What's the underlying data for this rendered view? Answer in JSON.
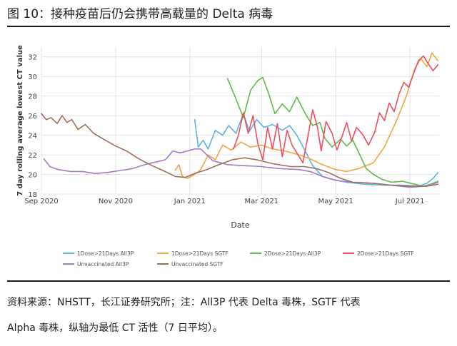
{
  "figure": {
    "title": "图 10：接种疫苗后仍会携带高载量的 Delta 病毒"
  },
  "source": {
    "line1": "资料来源：NHSTT，长江证券研究所；注：All3P 代表 Delta 毒株，SGTF 代表",
    "line2": "Alpha 毒株，纵轴为最低 CT 活性（7 日平均）。"
  },
  "chart_data": {
    "type": "line",
    "xlabel": "Date",
    "ylabel": "7 day rolling average lowest CT value",
    "xlim": [
      "2020-09-01",
      "2021-07-25"
    ],
    "ylim": [
      18,
      33
    ],
    "grid": true,
    "legend_position": "bottom",
    "x_ticks": [
      "Sep 2020",
      "Nov 2020",
      "Jan 2021",
      "Mar 2021",
      "May 2021",
      "Jul 2021"
    ],
    "y_ticks": [
      18,
      20,
      22,
      24,
      26,
      28,
      30,
      32
    ],
    "series": [
      {
        "name": "1Dose>21Days All3P",
        "color": "#5ab4e5",
        "points": [
          [
            "2021-01-05",
            25.6
          ],
          [
            "2021-01-08",
            22.8
          ],
          [
            "2021-01-12",
            23.5
          ],
          [
            "2021-01-16",
            22.6
          ],
          [
            "2021-01-22",
            24.5
          ],
          [
            "2021-01-28",
            24.0
          ],
          [
            "2021-02-02",
            25.0
          ],
          [
            "2021-02-08",
            24.2
          ],
          [
            "2021-02-14",
            26.2
          ],
          [
            "2021-02-19",
            24.4
          ],
          [
            "2021-02-25",
            25.6
          ],
          [
            "2021-03-03",
            24.8
          ],
          [
            "2021-03-10",
            25.1
          ],
          [
            "2021-03-18",
            24.5
          ],
          [
            "2021-03-24",
            25.0
          ],
          [
            "2021-03-30",
            24.0
          ],
          [
            "2021-04-05",
            22.6
          ],
          [
            "2021-04-12",
            20.9
          ],
          [
            "2021-04-20",
            19.8
          ],
          [
            "2021-04-28",
            19.5
          ],
          [
            "2021-05-10",
            19.2
          ],
          [
            "2021-05-25",
            19.0
          ],
          [
            "2021-06-10",
            18.9
          ],
          [
            "2021-06-25",
            18.9
          ],
          [
            "2021-07-08",
            18.8
          ],
          [
            "2021-07-15",
            19.1
          ],
          [
            "2021-07-20",
            19.6
          ],
          [
            "2021-07-24",
            20.2
          ]
        ]
      },
      {
        "name": "1Dose>21Days SGTF",
        "color": "#f5a442",
        "points": [
          [
            "2020-12-20",
            20.4
          ],
          [
            "2020-12-23",
            21.0
          ],
          [
            "2020-12-26",
            19.8
          ],
          [
            "2020-12-30",
            19.6
          ],
          [
            "2021-01-05",
            20.0
          ],
          [
            "2021-01-10",
            20.5
          ],
          [
            "2021-01-16",
            22.0
          ],
          [
            "2021-01-22",
            21.5
          ],
          [
            "2021-01-28",
            23.0
          ],
          [
            "2021-02-04",
            22.5
          ],
          [
            "2021-02-12",
            23.3
          ],
          [
            "2021-02-20",
            22.8
          ],
          [
            "2021-03-01",
            23.0
          ],
          [
            "2021-03-10",
            22.6
          ],
          [
            "2021-03-20",
            22.4
          ],
          [
            "2021-04-01",
            22.0
          ],
          [
            "2021-04-10",
            21.6
          ],
          [
            "2021-04-20",
            21.0
          ],
          [
            "2021-05-01",
            20.5
          ],
          [
            "2021-05-10",
            20.3
          ],
          [
            "2021-05-20",
            20.6
          ],
          [
            "2021-06-01",
            21.2
          ],
          [
            "2021-06-10",
            22.8
          ],
          [
            "2021-06-20",
            25.5
          ],
          [
            "2021-06-28",
            28.0
          ],
          [
            "2021-07-05",
            30.8
          ],
          [
            "2021-07-10",
            31.8
          ],
          [
            "2021-07-15",
            31.0
          ],
          [
            "2021-07-19",
            32.4
          ],
          [
            "2021-07-24",
            31.6
          ]
        ]
      },
      {
        "name": "2Dose>21Days All3P",
        "color": "#62b84c",
        "points": [
          [
            "2021-02-01",
            29.8
          ],
          [
            "2021-02-07",
            28.0
          ],
          [
            "2021-02-14",
            25.8
          ],
          [
            "2021-02-20",
            28.6
          ],
          [
            "2021-02-26",
            29.6
          ],
          [
            "2021-03-02",
            29.9
          ],
          [
            "2021-03-07",
            28.2
          ],
          [
            "2021-03-12",
            26.2
          ],
          [
            "2021-03-18",
            27.2
          ],
          [
            "2021-03-24",
            26.4
          ],
          [
            "2021-03-30",
            27.9
          ],
          [
            "2021-04-06",
            26.2
          ],
          [
            "2021-04-12",
            25.0
          ],
          [
            "2021-04-18",
            25.3
          ],
          [
            "2021-04-22",
            23.7
          ],
          [
            "2021-04-28",
            22.8
          ],
          [
            "2021-05-05",
            23.6
          ],
          [
            "2021-05-10",
            22.9
          ],
          [
            "2021-05-15",
            23.5
          ],
          [
            "2021-05-20",
            22.2
          ],
          [
            "2021-05-26",
            20.6
          ],
          [
            "2021-06-01",
            20.0
          ],
          [
            "2021-06-08",
            19.5
          ],
          [
            "2021-06-16",
            19.2
          ],
          [
            "2021-06-25",
            19.3
          ],
          [
            "2021-07-05",
            19.0
          ],
          [
            "2021-07-12",
            18.8
          ],
          [
            "2021-07-18",
            19.0
          ],
          [
            "2021-07-24",
            19.3
          ]
        ]
      },
      {
        "name": "2Dose>21Days SGTF",
        "color": "#e94f5d",
        "points": [
          [
            "2021-02-06",
            22.6
          ],
          [
            "2021-02-10",
            24.0
          ],
          [
            "2021-02-14",
            26.3
          ],
          [
            "2021-02-18",
            24.2
          ],
          [
            "2021-02-22",
            26.0
          ],
          [
            "2021-02-26",
            23.1
          ],
          [
            "2021-03-02",
            21.5
          ],
          [
            "2021-03-06",
            24.8
          ],
          [
            "2021-03-10",
            22.6
          ],
          [
            "2021-03-14",
            25.2
          ],
          [
            "2021-03-18",
            21.8
          ],
          [
            "2021-03-22",
            24.5
          ],
          [
            "2021-03-26",
            23.0
          ],
          [
            "2021-03-30",
            22.2
          ],
          [
            "2021-04-04",
            21.2
          ],
          [
            "2021-04-08",
            23.8
          ],
          [
            "2021-04-12",
            26.6
          ],
          [
            "2021-04-16",
            24.8
          ],
          [
            "2021-04-19",
            22.4
          ],
          [
            "2021-04-23",
            25.4
          ],
          [
            "2021-04-28",
            24.2
          ],
          [
            "2021-05-02",
            22.5
          ],
          [
            "2021-05-06",
            23.8
          ],
          [
            "2021-05-10",
            25.3
          ],
          [
            "2021-05-14",
            23.4
          ],
          [
            "2021-05-18",
            24.8
          ],
          [
            "2021-05-23",
            24.1
          ],
          [
            "2021-05-28",
            23.0
          ],
          [
            "2021-06-02",
            24.3
          ],
          [
            "2021-06-06",
            26.3
          ],
          [
            "2021-06-10",
            25.5
          ],
          [
            "2021-06-14",
            27.3
          ],
          [
            "2021-06-18",
            26.4
          ],
          [
            "2021-06-22",
            28.2
          ],
          [
            "2021-06-26",
            29.4
          ],
          [
            "2021-06-30",
            28.9
          ],
          [
            "2021-07-04",
            30.3
          ],
          [
            "2021-07-08",
            31.6
          ],
          [
            "2021-07-12",
            32.1
          ],
          [
            "2021-07-16",
            31.3
          ],
          [
            "2021-07-20",
            30.6
          ],
          [
            "2021-07-24",
            31.2
          ]
        ]
      },
      {
        "name": "Unvaccinated All3P",
        "color": "#a07cc9",
        "points": [
          [
            "2020-09-03",
            21.6
          ],
          [
            "2020-09-08",
            20.8
          ],
          [
            "2020-09-15",
            20.5
          ],
          [
            "2020-09-25",
            20.3
          ],
          [
            "2020-10-05",
            20.3
          ],
          [
            "2020-10-15",
            20.1
          ],
          [
            "2020-10-25",
            20.2
          ],
          [
            "2020-11-05",
            20.4
          ],
          [
            "2020-11-15",
            20.6
          ],
          [
            "2020-11-25",
            21.0
          ],
          [
            "2020-12-05",
            21.3
          ],
          [
            "2020-12-12",
            21.5
          ],
          [
            "2020-12-18",
            22.4
          ],
          [
            "2020-12-24",
            22.2
          ],
          [
            "2020-12-30",
            22.4
          ],
          [
            "2021-01-05",
            22.6
          ],
          [
            "2021-01-10",
            22.6
          ],
          [
            "2021-01-20",
            21.4
          ],
          [
            "2021-02-01",
            21.0
          ],
          [
            "2021-02-15",
            20.9
          ],
          [
            "2021-03-01",
            20.8
          ],
          [
            "2021-03-15",
            20.6
          ],
          [
            "2021-04-01",
            20.5
          ],
          [
            "2021-04-10",
            20.3
          ],
          [
            "2021-04-20",
            19.8
          ],
          [
            "2021-05-01",
            19.4
          ],
          [
            "2021-05-15",
            19.2
          ],
          [
            "2021-06-01",
            19.1
          ],
          [
            "2021-06-15",
            18.9
          ],
          [
            "2021-07-01",
            18.7
          ],
          [
            "2021-07-15",
            18.8
          ],
          [
            "2021-07-24",
            19.2
          ]
        ]
      },
      {
        "name": "Unvaccinated SGTF",
        "color": "#a0705b",
        "points": [
          [
            "2020-09-01",
            26.2
          ],
          [
            "2020-09-05",
            25.6
          ],
          [
            "2020-09-09",
            25.8
          ],
          [
            "2020-09-14",
            25.2
          ],
          [
            "2020-09-18",
            26.0
          ],
          [
            "2020-09-22",
            25.3
          ],
          [
            "2020-09-26",
            25.6
          ],
          [
            "2020-10-01",
            24.6
          ],
          [
            "2020-10-07",
            25.1
          ],
          [
            "2020-10-14",
            24.2
          ],
          [
            "2020-10-22",
            23.6
          ],
          [
            "2020-11-01",
            22.9
          ],
          [
            "2020-11-10",
            22.4
          ],
          [
            "2020-11-20",
            21.6
          ],
          [
            "2020-12-01",
            20.9
          ],
          [
            "2020-12-10",
            20.4
          ],
          [
            "2020-12-20",
            19.8
          ],
          [
            "2020-12-28",
            19.7
          ],
          [
            "2021-01-05",
            20.1
          ],
          [
            "2021-01-15",
            20.5
          ],
          [
            "2021-01-25",
            21.0
          ],
          [
            "2021-02-05",
            21.5
          ],
          [
            "2021-02-15",
            21.7
          ],
          [
            "2021-02-25",
            21.5
          ],
          [
            "2021-03-10",
            21.1
          ],
          [
            "2021-03-25",
            20.8
          ],
          [
            "2021-04-05",
            20.8
          ],
          [
            "2021-04-15",
            20.6
          ],
          [
            "2021-04-25",
            20.2
          ],
          [
            "2021-05-05",
            19.6
          ],
          [
            "2021-05-15",
            19.2
          ],
          [
            "2021-06-01",
            19.1
          ],
          [
            "2021-06-15",
            18.9
          ],
          [
            "2021-07-01",
            18.8
          ],
          [
            "2021-07-15",
            18.8
          ],
          [
            "2021-07-24",
            19.0
          ]
        ]
      }
    ]
  }
}
